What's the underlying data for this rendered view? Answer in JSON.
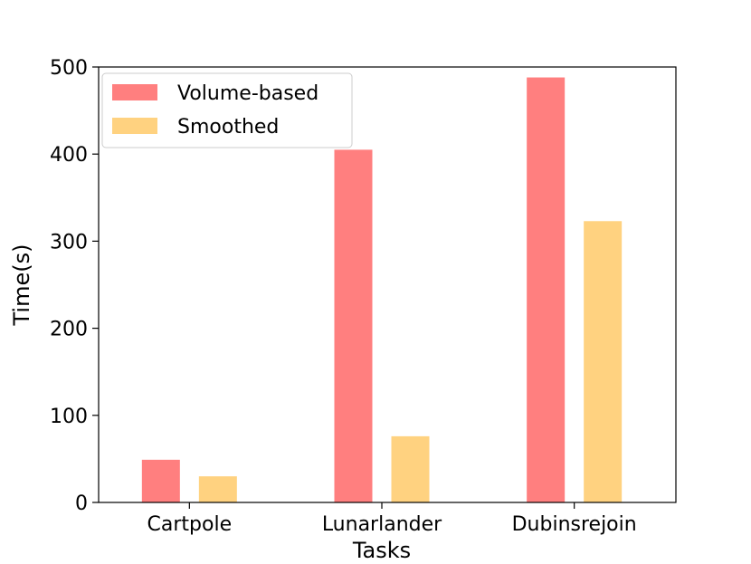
{
  "chart_data": {
    "type": "bar",
    "title": "",
    "xlabel": "Tasks",
    "ylabel": "Time(s)",
    "categories": [
      "Cartpole",
      "Lunarlander",
      "Dubinsrejoin"
    ],
    "series": [
      {
        "name": "Volume-based",
        "color": "#ff7f7f",
        "values": [
          49,
          405,
          488
        ]
      },
      {
        "name": "Smoothed",
        "color": "#ffd280",
        "values": [
          30,
          76,
          323
        ]
      }
    ],
    "ylim": [
      0,
      500
    ],
    "yticks": [
      0,
      100,
      200,
      300,
      400,
      500
    ],
    "grid": false,
    "legend": "top-left"
  }
}
